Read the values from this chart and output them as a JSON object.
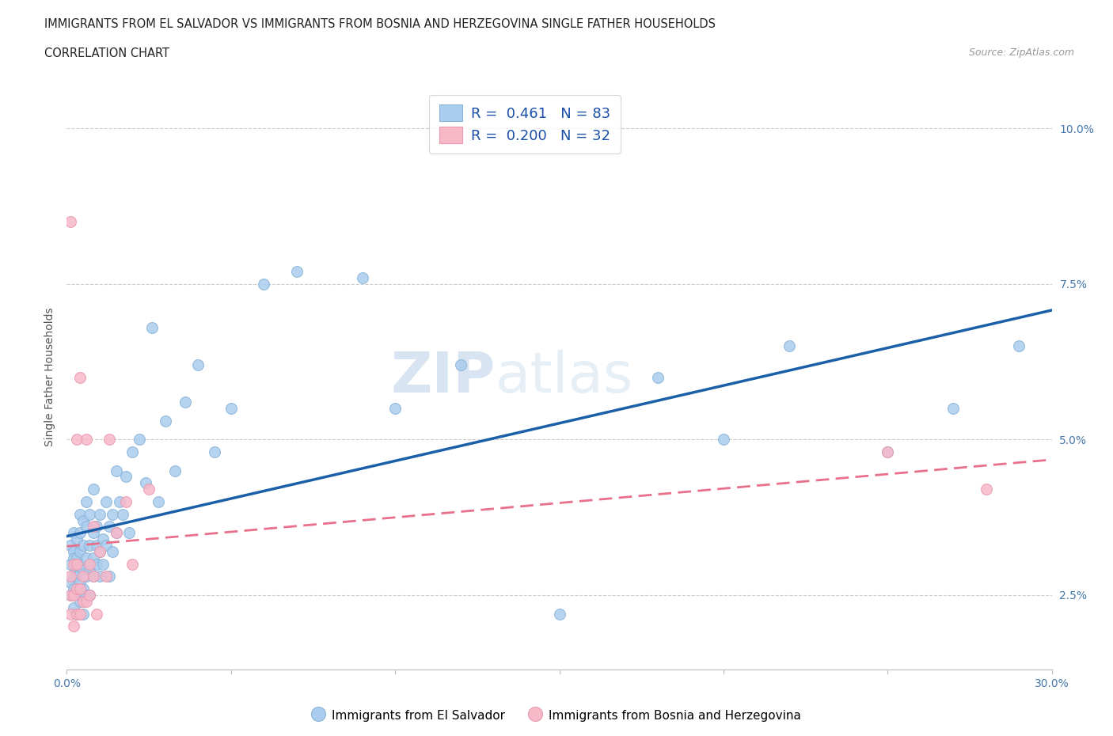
{
  "title_line1": "IMMIGRANTS FROM EL SALVADOR VS IMMIGRANTS FROM BOSNIA AND HERZEGOVINA SINGLE FATHER HOUSEHOLDS",
  "title_line2": "CORRELATION CHART",
  "source_text": "Source: ZipAtlas.com",
  "ylabel": "Single Father Households",
  "xlim": [
    0,
    0.3
  ],
  "ylim": [
    0.013,
    0.107
  ],
  "xticks": [
    0.0,
    0.05,
    0.1,
    0.15,
    0.2,
    0.25,
    0.3
  ],
  "yticks": [
    0.025,
    0.05,
    0.075,
    0.1
  ],
  "ytick_labels": [
    "2.5%",
    "5.0%",
    "7.5%",
    "10.0%"
  ],
  "xtick_labels": [
    "0.0%",
    "",
    "",
    "",
    "",
    "",
    "30.0%"
  ],
  "blue_color": "#aaccee",
  "pink_color": "#f7b8c8",
  "blue_line_color": "#1a5fa8",
  "pink_line_color": "#e8708a",
  "R_blue": 0.461,
  "N_blue": 83,
  "R_pink": 0.2,
  "N_pink": 32,
  "watermark_zip": "ZIP",
  "watermark_atlas": "atlas",
  "legend_label_blue": "Immigrants from El Salvador",
  "legend_label_pink": "Immigrants from Bosnia and Herzegovina",
  "blue_scatter_x": [
    0.001,
    0.001,
    0.001,
    0.001,
    0.002,
    0.002,
    0.002,
    0.002,
    0.002,
    0.002,
    0.003,
    0.003,
    0.003,
    0.003,
    0.003,
    0.003,
    0.004,
    0.004,
    0.004,
    0.004,
    0.004,
    0.004,
    0.005,
    0.005,
    0.005,
    0.005,
    0.005,
    0.006,
    0.006,
    0.006,
    0.006,
    0.006,
    0.007,
    0.007,
    0.007,
    0.007,
    0.008,
    0.008,
    0.008,
    0.008,
    0.009,
    0.009,
    0.009,
    0.01,
    0.01,
    0.01,
    0.011,
    0.011,
    0.012,
    0.012,
    0.013,
    0.013,
    0.014,
    0.014,
    0.015,
    0.015,
    0.016,
    0.017,
    0.018,
    0.019,
    0.02,
    0.022,
    0.024,
    0.026,
    0.028,
    0.03,
    0.033,
    0.036,
    0.04,
    0.045,
    0.05,
    0.06,
    0.07,
    0.09,
    0.1,
    0.12,
    0.15,
    0.18,
    0.2,
    0.22,
    0.25,
    0.27,
    0.29
  ],
  "blue_scatter_y": [
    0.03,
    0.033,
    0.027,
    0.025,
    0.032,
    0.028,
    0.035,
    0.023,
    0.026,
    0.031,
    0.029,
    0.034,
    0.025,
    0.028,
    0.022,
    0.031,
    0.027,
    0.03,
    0.035,
    0.024,
    0.032,
    0.038,
    0.026,
    0.029,
    0.033,
    0.022,
    0.037,
    0.028,
    0.031,
    0.036,
    0.025,
    0.04,
    0.029,
    0.033,
    0.038,
    0.025,
    0.031,
    0.035,
    0.028,
    0.042,
    0.033,
    0.03,
    0.036,
    0.032,
    0.028,
    0.038,
    0.034,
    0.03,
    0.033,
    0.04,
    0.036,
    0.028,
    0.038,
    0.032,
    0.035,
    0.045,
    0.04,
    0.038,
    0.044,
    0.035,
    0.048,
    0.05,
    0.043,
    0.068,
    0.04,
    0.053,
    0.045,
    0.056,
    0.062,
    0.048,
    0.055,
    0.075,
    0.077,
    0.076,
    0.055,
    0.062,
    0.022,
    0.06,
    0.05,
    0.065,
    0.048,
    0.055,
    0.065
  ],
  "pink_scatter_x": [
    0.001,
    0.001,
    0.001,
    0.001,
    0.002,
    0.002,
    0.002,
    0.003,
    0.003,
    0.003,
    0.003,
    0.004,
    0.004,
    0.004,
    0.005,
    0.005,
    0.006,
    0.006,
    0.007,
    0.007,
    0.008,
    0.008,
    0.009,
    0.01,
    0.012,
    0.013,
    0.015,
    0.018,
    0.02,
    0.025,
    0.25,
    0.28
  ],
  "pink_scatter_y": [
    0.025,
    0.022,
    0.028,
    0.085,
    0.02,
    0.025,
    0.03,
    0.022,
    0.026,
    0.03,
    0.05,
    0.022,
    0.026,
    0.06,
    0.024,
    0.028,
    0.024,
    0.05,
    0.025,
    0.03,
    0.028,
    0.036,
    0.022,
    0.032,
    0.028,
    0.05,
    0.035,
    0.04,
    0.03,
    0.042,
    0.048,
    0.042
  ]
}
